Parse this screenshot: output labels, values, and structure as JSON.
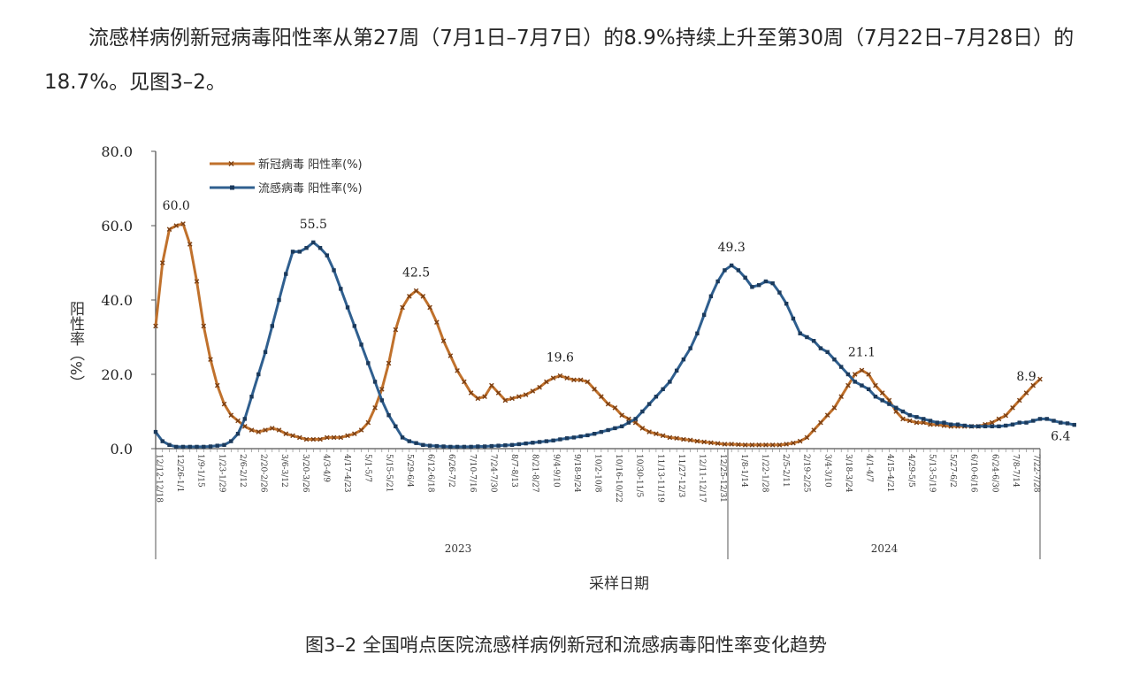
{
  "paragraph": "流感样病例新冠病毒阳性率从第27周（7月1日–7月7日）的8.9%持续上升至第30周（7月22日–7月28日）的18.7%。见图3–2。",
  "caption": "图3–2 全国哨点医院流感样病例新冠和流感病毒阳性率变化趋势",
  "chart_data": {
    "type": "line",
    "title": "",
    "xlabel": "采样日期",
    "ylabel": "阳性率（%）",
    "ylim": [
      0,
      80
    ],
    "y_ticks": [
      "0.0",
      "20.0",
      "40.0",
      "60.0",
      "80.0"
    ],
    "grid": false,
    "legend_position": "top-left",
    "years": [
      {
        "label": "2023",
        "start_index": 0,
        "end_index": 67
      },
      {
        "label": "2024",
        "start_index": 68,
        "end_index": 103
      }
    ],
    "x_tick_labels": [
      "12/12-12/18",
      "12/26-1/1",
      "1/9-1/15",
      "1/23-1/29",
      "2/6-2/12",
      "2/20-2/26",
      "3/6-3/12",
      "3/20-3/26",
      "4/3-4/9",
      "4/17-4/23",
      "5/1-5/7",
      "5/15-5/21",
      "5/29-6/4",
      "6/12-6/18",
      "6/26-7/2",
      "7/10-7/16",
      "7/24-7/30",
      "8/7-8/13",
      "8/21-8/27",
      "9/4-9/10",
      "9/18-9/24",
      "10/2-10/8",
      "10/16-10/22",
      "10/30-11/5",
      "11/13-11/19",
      "11/27-12/3",
      "12/11-12/17",
      "12/25-12/31",
      "1/8-1/14",
      "1/22-1/28",
      "2/5-2/11",
      "2/19-2/25",
      "3/4-3/10",
      "3/18-3/24",
      "4/1-4/7",
      "4/15-4/21",
      "4/29-5/5",
      "5/13-5/19",
      "5/27-6/2",
      "6/10-6/16",
      "6/24-6/30",
      "7/8-7/14",
      "7/22-7/28"
    ],
    "series": [
      {
        "name": "新冠病毒 阳性率(%)",
        "color": "#c0712c",
        "marker": "x",
        "values": [
          33,
          50,
          59,
          60,
          60.5,
          55,
          45,
          33,
          24,
          17,
          12,
          9,
          7.5,
          6,
          5,
          4.5,
          5,
          5.5,
          5,
          4,
          3.5,
          3,
          2.5,
          2.5,
          2.5,
          3,
          3,
          3,
          3.5,
          4,
          5,
          7,
          11,
          16,
          23,
          32,
          38,
          41,
          42.5,
          41,
          38,
          34,
          29,
          25,
          21,
          18,
          15,
          13.5,
          14,
          17,
          15,
          13,
          13.5,
          14,
          14.5,
          15.5,
          16.5,
          18,
          19,
          19.6,
          19,
          18.5,
          18.5,
          18,
          16,
          14,
          12,
          11,
          9,
          8,
          7,
          5.5,
          4.5,
          4,
          3.5,
          3,
          2.8,
          2.5,
          2.3,
          2,
          1.8,
          1.6,
          1.4,
          1.2,
          1.2,
          1.1,
          1,
          1,
          1,
          1,
          1,
          1,
          1.2,
          1.5,
          2,
          3,
          5,
          7,
          9,
          11,
          14,
          17,
          20,
          21.1,
          20,
          17,
          15,
          13,
          10,
          8,
          7.5,
          7,
          7,
          6.5,
          6.5,
          6.2,
          6,
          6,
          6,
          6,
          6,
          6.5,
          7,
          8,
          8.9,
          11,
          13,
          15,
          17,
          18.7
        ],
        "labeled_points": [
          {
            "index": 3,
            "label": "60.0"
          },
          {
            "index": 38,
            "label": "42.5"
          },
          {
            "index": 59,
            "label": "19.6"
          },
          {
            "index": 103,
            "label": "21.1"
          },
          {
            "index": 127,
            "label": "8.9"
          },
          {
            "index": 132,
            "label": "18.7"
          }
        ]
      },
      {
        "name": "流感病毒 阳性率(%)",
        "color": "#2f5f8f",
        "marker": "square",
        "values": [
          4.5,
          2,
          1,
          0.5,
          0.5,
          0.5,
          0.5,
          0.5,
          0.6,
          0.8,
          1,
          2,
          4,
          8,
          14,
          20,
          26,
          33,
          40,
          47,
          53,
          53,
          54,
          55.5,
          54,
          52,
          48,
          43,
          38,
          33,
          28,
          23,
          18,
          13,
          9,
          6,
          3,
          2,
          1.5,
          1,
          0.8,
          0.7,
          0.6,
          0.5,
          0.5,
          0.5,
          0.5,
          0.6,
          0.6,
          0.7,
          0.8,
          0.9,
          1,
          1.2,
          1.4,
          1.6,
          1.8,
          2,
          2.2,
          2.5,
          2.8,
          3,
          3.3,
          3.6,
          4,
          4.5,
          5,
          5.5,
          6,
          7,
          8,
          10,
          12,
          14,
          16,
          18,
          21,
          24,
          27,
          31,
          36,
          41,
          45,
          48,
          49.3,
          48,
          46,
          43.5,
          44,
          45,
          44.5,
          42,
          39,
          35,
          31,
          30,
          29,
          27,
          26,
          24,
          22,
          20,
          18,
          17,
          16,
          14,
          13,
          12,
          11,
          10,
          9,
          8.5,
          8,
          7.5,
          7,
          7,
          6.5,
          6.5,
          6.2,
          6,
          6,
          6,
          6,
          6,
          6.2,
          6.5,
          7,
          7,
          7.5,
          8,
          8,
          7.5,
          7,
          6.8,
          6.4
        ],
        "labeled_points": [
          {
            "index": 23,
            "label": "55.5"
          },
          {
            "index": 84,
            "label": "49.3"
          },
          {
            "index": 132,
            "label": "6.4"
          }
        ]
      }
    ]
  }
}
